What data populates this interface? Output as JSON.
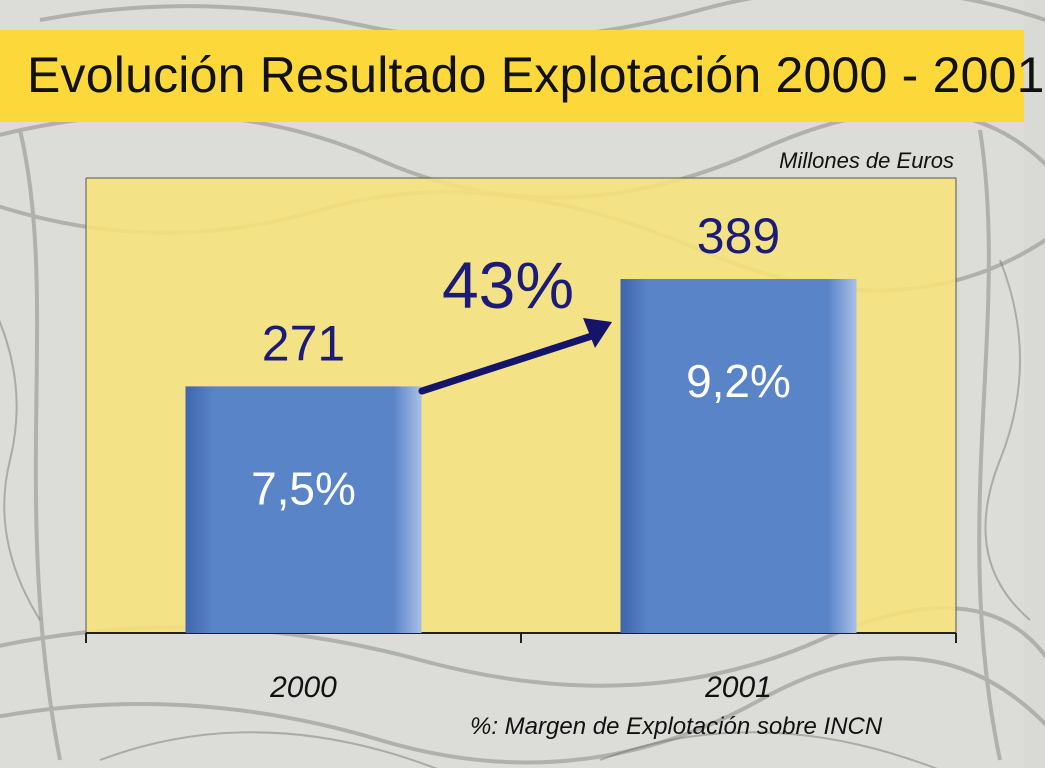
{
  "title": "Evolución Resultado Explotación 2000 - 2001",
  "unit_label": "Millones de Euros",
  "footnote": "%: Margen de Explotación sobre INCN",
  "colors": {
    "title_bar": "#fcd83a",
    "plot_background": "#f7e27a",
    "bar": "#5a84c8",
    "value_text": "#1c1c78",
    "arrow": "#14146a"
  },
  "chart_data": {
    "type": "bar",
    "categories": [
      "2000",
      "2001"
    ],
    "values": [
      271,
      389
    ],
    "value_labels": [
      "271",
      "389"
    ],
    "inner_labels": [
      "7,5%",
      "9,2%"
    ],
    "growth_label": "43%",
    "ylim": [
      0,
      500
    ],
    "grid": false,
    "xlabel": "",
    "ylabel": ""
  }
}
